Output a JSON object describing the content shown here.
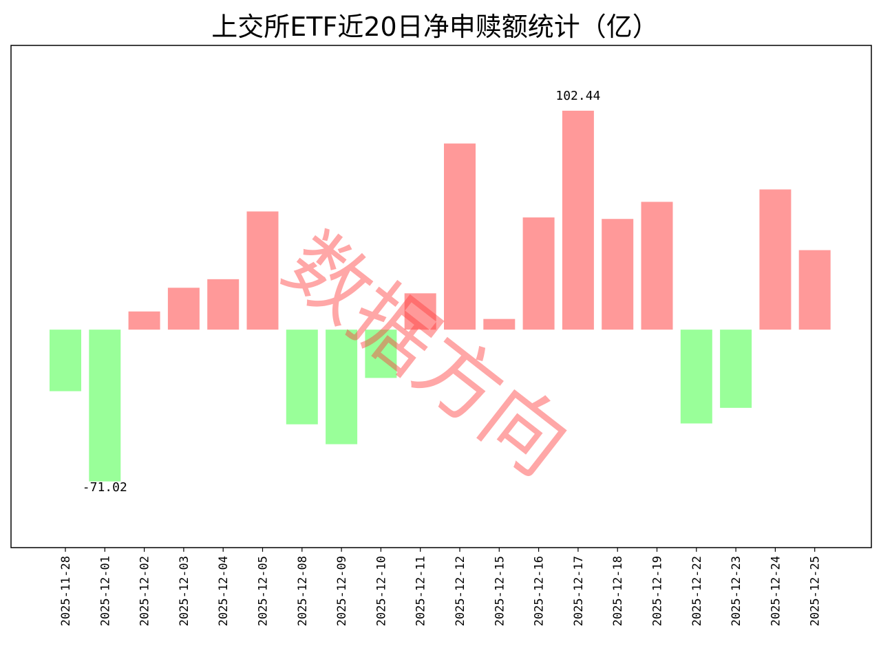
{
  "chart_data": {
    "type": "bar",
    "title": "上交所ETF近20日净申赎额统计（亿）",
    "xlabel": "",
    "ylabel": "",
    "categories": [
      "2025-11-28",
      "2025-12-01",
      "2025-12-02",
      "2025-12-03",
      "2025-12-04",
      "2025-12-05",
      "2025-12-08",
      "2025-12-09",
      "2025-12-10",
      "2025-12-11",
      "2025-12-12",
      "2025-12-15",
      "2025-12-16",
      "2025-12-17",
      "2025-12-18",
      "2025-12-19",
      "2025-12-22",
      "2025-12-23",
      "2025-12-24",
      "2025-12-25"
    ],
    "values": [
      -28.8,
      -71.02,
      8.5,
      19.6,
      23.6,
      55.3,
      -44.3,
      -53.6,
      -22.6,
      17.0,
      87.1,
      5.0,
      52.5,
      102.44,
      51.8,
      59.8,
      -43.9,
      -36.6,
      65.6,
      37.2
    ],
    "ylim": [
      -102,
      133
    ],
    "data_labels": {
      "max": "102.44",
      "min": "-71.02"
    },
    "colors": {
      "positive": "#ff9999",
      "negative": "#99ff99",
      "axis": "#000000"
    },
    "grid": false,
    "legend": "none",
    "watermark": "数据方向"
  }
}
